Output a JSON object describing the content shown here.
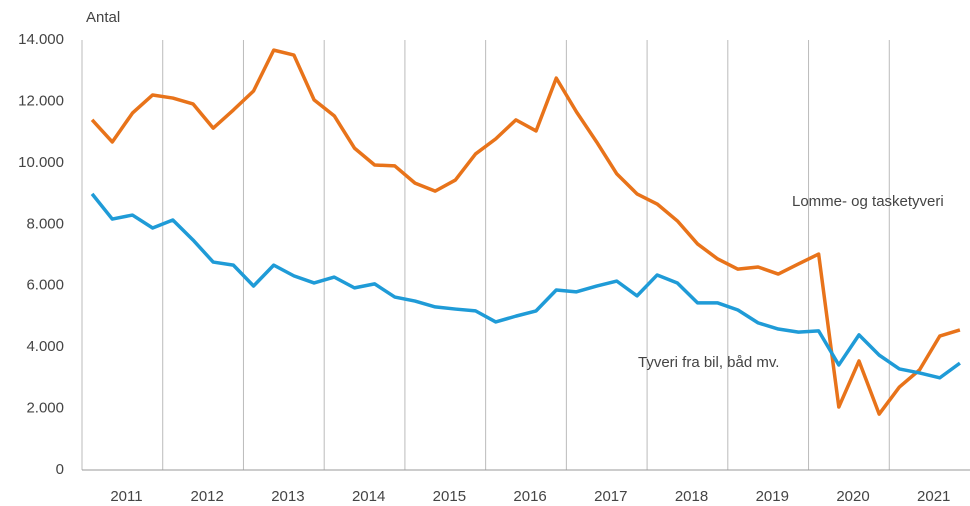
{
  "chart_data": {
    "type": "line",
    "y_label": "Antal",
    "categories": [
      null,
      null,
      "2011",
      null,
      null,
      null,
      "2012",
      null,
      null,
      null,
      "2013",
      null,
      null,
      null,
      "2014",
      null,
      null,
      null,
      "2015",
      null,
      null,
      null,
      "2016",
      null,
      null,
      null,
      "2017",
      null,
      null,
      null,
      "2018",
      null,
      null,
      null,
      "2019",
      null,
      null,
      null,
      "2020",
      null,
      null,
      null,
      "2021",
      null
    ],
    "series": [
      {
        "name": "Lomme- og tasketyveri",
        "color": "#e8731a",
        "values": [
          11400,
          10680,
          11620,
          12210,
          12110,
          11920,
          11130,
          11720,
          12340,
          13670,
          13510,
          12050,
          11530,
          10480,
          9930,
          9900,
          9340,
          9080,
          9440,
          10290,
          10780,
          11400,
          11040,
          12760,
          11660,
          10680,
          9640,
          8990,
          8660,
          8110,
          7360,
          6870,
          6540,
          6610,
          6380,
          6710,
          7030,
          2050,
          3550,
          1820,
          2700,
          3260,
          4360,
          4560
        ]
      },
      {
        "name": "Tyveri fra bil, båd mv.",
        "color": "#1f9bd7",
        "values": [
          8990,
          8170,
          8300,
          7880,
          8140,
          7490,
          6770,
          6670,
          5990,
          6670,
          6320,
          6090,
          6280,
          5930,
          6060,
          5630,
          5500,
          5310,
          5240,
          5180,
          4820,
          5010,
          5180,
          5860,
          5800,
          5990,
          6150,
          5670,
          6350,
          6090,
          5440,
          5440,
          5210,
          4790,
          4590,
          4490,
          4530,
          3420,
          4400,
          3740,
          3290,
          3160,
          3000,
          3480
        ]
      }
    ],
    "ylim": [
      0,
      14000
    ],
    "yticks": [
      0,
      {
        "value": 2000,
        "label": "2.000"
      },
      {
        "value": 4000,
        "label": "4.000"
      },
      {
        "value": 6000,
        "label": "6.000"
      },
      {
        "value": 8000,
        "label": "8.000"
      },
      {
        "value": 10000,
        "label": "10.000"
      },
      {
        "value": 12000,
        "label": "12.000"
      },
      {
        "value": 14000,
        "label": "14.000"
      }
    ],
    "grid": "x"
  }
}
